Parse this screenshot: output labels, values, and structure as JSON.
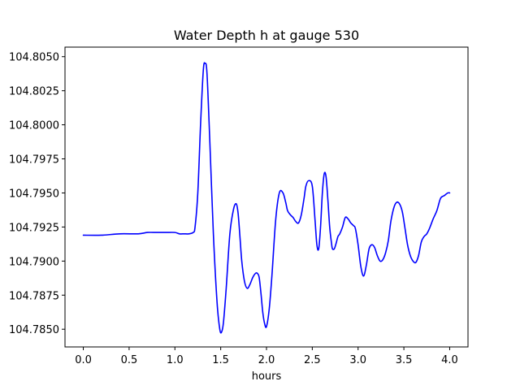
{
  "chart_data": {
    "type": "line",
    "title": "Water Depth h at gauge 530",
    "xlabel": "hours",
    "ylabel": "",
    "xlim": [
      -0.2,
      4.2
    ],
    "ylim": [
      104.7837,
      104.8057
    ],
    "xticks": [
      {
        "value": 0.0,
        "label": "0.0"
      },
      {
        "value": 0.5,
        "label": "0.5"
      },
      {
        "value": 1.0,
        "label": "1.0"
      },
      {
        "value": 1.5,
        "label": "1.5"
      },
      {
        "value": 2.0,
        "label": "2.0"
      },
      {
        "value": 2.5,
        "label": "2.5"
      },
      {
        "value": 3.0,
        "label": "3.0"
      },
      {
        "value": 3.5,
        "label": "3.5"
      },
      {
        "value": 4.0,
        "label": "4.0"
      }
    ],
    "yticks": [
      {
        "value": 104.785,
        "label": "104.7850"
      },
      {
        "value": 104.7875,
        "label": "104.7875"
      },
      {
        "value": 104.79,
        "label": "104.7900"
      },
      {
        "value": 104.7925,
        "label": "104.7925"
      },
      {
        "value": 104.795,
        "label": "104.7950"
      },
      {
        "value": 104.7975,
        "label": "104.7975"
      },
      {
        "value": 104.8,
        "label": "104.8000"
      },
      {
        "value": 104.8025,
        "label": "104.8025"
      },
      {
        "value": 104.805,
        "label": "104.8050"
      }
    ],
    "grid": false,
    "series": [
      {
        "color": "#0000ff",
        "x": [
          0.0,
          0.2,
          0.4,
          0.6,
          0.7,
          0.8,
          0.9,
          1.0,
          1.05,
          1.1,
          1.15,
          1.2,
          1.22,
          1.25,
          1.28,
          1.31,
          1.33,
          1.35,
          1.38,
          1.42,
          1.46,
          1.49,
          1.51,
          1.53,
          1.56,
          1.6,
          1.64,
          1.67,
          1.69,
          1.71,
          1.73,
          1.76,
          1.79,
          1.82,
          1.85,
          1.88,
          1.9,
          1.92,
          1.94,
          1.96,
          1.98,
          2.0,
          2.03,
          2.06,
          2.1,
          2.14,
          2.18,
          2.21,
          2.23,
          2.26,
          2.29,
          2.32,
          2.35,
          2.38,
          2.41,
          2.43,
          2.46,
          2.5,
          2.53,
          2.55,
          2.57,
          2.59,
          2.61,
          2.63,
          2.65,
          2.67,
          2.69,
          2.71,
          2.72,
          2.74,
          2.76,
          2.78,
          2.8,
          2.83,
          2.86,
          2.89,
          2.92,
          2.95,
          2.97,
          3.0,
          3.03,
          3.06,
          3.09,
          3.12,
          3.15,
          3.18,
          3.21,
          3.24,
          3.27,
          3.3,
          3.33,
          3.36,
          3.4,
          3.44,
          3.48,
          3.51,
          3.54,
          3.57,
          3.6,
          3.63,
          3.66,
          3.69,
          3.72,
          3.75,
          3.78,
          3.82,
          3.86,
          3.9,
          3.94,
          3.98,
          4.0
        ],
        "values": [
          104.7919,
          104.7919,
          104.792,
          104.792,
          104.7921,
          104.7921,
          104.7921,
          104.7921,
          104.792,
          104.792,
          104.792,
          104.7921,
          104.7925,
          104.795,
          104.8,
          104.804,
          104.8045,
          104.8038,
          104.799,
          104.792,
          104.787,
          104.785,
          104.7848,
          104.7855,
          104.788,
          104.792,
          104.7938,
          104.7942,
          104.7935,
          104.7918,
          104.79,
          104.7885,
          104.788,
          104.7883,
          104.7888,
          104.7891,
          104.7891,
          104.7888,
          104.7876,
          104.7862,
          104.7854,
          104.7852,
          104.7865,
          104.789,
          104.793,
          104.795,
          104.795,
          104.7943,
          104.7937,
          104.7934,
          104.7932,
          104.7929,
          104.7928,
          104.7934,
          104.7946,
          104.7955,
          104.7959,
          104.7955,
          104.793,
          104.7912,
          104.7909,
          104.7925,
          104.795,
          104.7964,
          104.7962,
          104.7945,
          104.7925,
          104.7913,
          104.7909,
          104.7909,
          104.7913,
          104.7918,
          104.792,
          104.7925,
          104.7932,
          104.7931,
          104.7928,
          104.7926,
          104.7924,
          104.7912,
          104.7896,
          104.7889,
          104.7897,
          104.7909,
          104.7912,
          104.791,
          104.7904,
          104.79,
          104.7901,
          104.7906,
          104.7915,
          104.793,
          104.7941,
          104.7943,
          104.7937,
          104.7925,
          104.7912,
          104.7904,
          104.79,
          104.7899,
          104.7904,
          104.7914,
          104.7918,
          104.792,
          104.7924,
          104.7931,
          104.7937,
          104.7946,
          104.7948,
          104.795,
          104.795
        ]
      }
    ]
  }
}
